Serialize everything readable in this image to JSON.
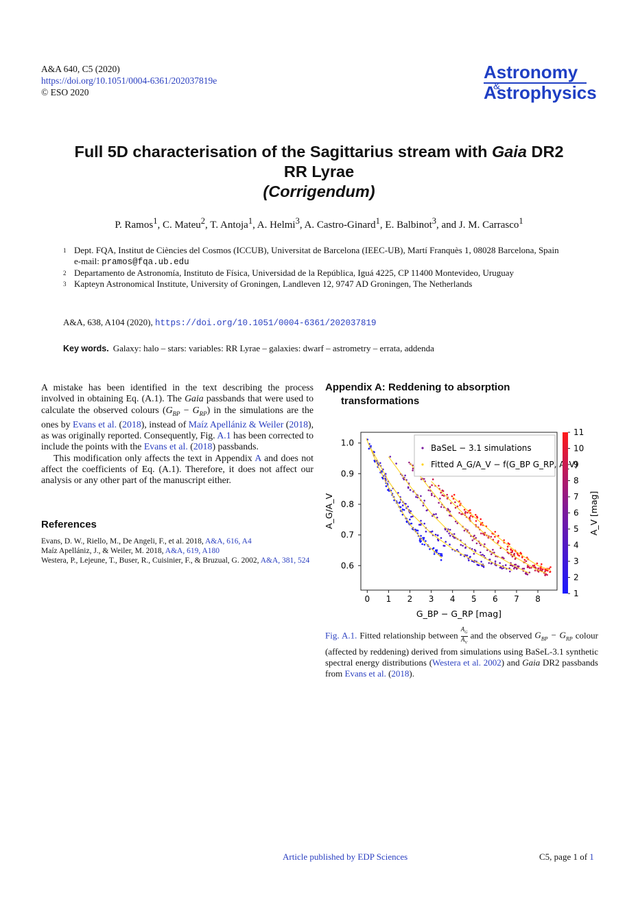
{
  "header": {
    "journal_ref": "A&A 640, C5 (2020)",
    "doi": "https://doi.org/10.1051/0004-6361/202037819e",
    "copyright": "© ESO 2020"
  },
  "logo": {
    "line1": "Astronomy",
    "amp": "&",
    "line2": "Astrophysics"
  },
  "title": {
    "line1_a": "Full 5D characterisation of the Sagittarius stream with ",
    "line1_italic": "Gaia",
    "line1_b": " DR2",
    "line2": "RR Lyrae",
    "line3": "(Corrigendum)"
  },
  "authors": [
    {
      "name": "P. Ramos",
      "aff": "1"
    },
    {
      "name": "C. Mateu",
      "aff": "2"
    },
    {
      "name": "T. Antoja",
      "aff": "1"
    },
    {
      "name": "A. Helmi",
      "aff": "3"
    },
    {
      "name": "A. Castro-Ginard",
      "aff": "1"
    },
    {
      "name": "E. Balbinot",
      "aff": "3"
    },
    {
      "name": "J. M. Carrasco",
      "aff": "1"
    }
  ],
  "affiliations": {
    "a1_num": "1",
    "a1_text": "Dept. FQA, Institut de Ciències del Cosmos (ICCUB), Universitat de Barcelona (IEEC-UB), Martí Franquès 1, 08028 Barcelona, Spain",
    "a1_email_label": "e-mail: ",
    "a1_email": "pramos@fqa.ub.edu",
    "a2_num": "2",
    "a2_text": "Departamento de Astronomía, Instituto de Física, Universidad de la República, Iguá 4225, CP 11400 Montevideo, Uruguay",
    "a3_num": "3",
    "a3_text": "Kapteyn Astronomical Institute, University of Groningen, Landleven 12, 9747 AD Groningen, The Netherlands"
  },
  "original": {
    "ref": "A&A, 638, A104 (2020), ",
    "doi": "https://doi.org/10.1051/0004-6361/202037819"
  },
  "keywords": {
    "label": "Key words.",
    "text": "Galaxy: halo – stars: variables: RR Lyrae – galaxies: dwarf – astrometry – errata, addenda"
  },
  "body": {
    "p1": [
      "A mistake has been identified in the text describing the process involved in obtaining Eq. (A.1). The ",
      "Gaia",
      " passbands that were used to calculate the observed colours (",
      "G",
      "BP",
      " − ",
      "G",
      "RP",
      ") in the simulations are the ones by ",
      "Evans et al.",
      " (",
      "2018",
      "), instead of ",
      "Maíz Apellániz & Weiler",
      " (",
      "2018",
      "), as was originally reported. Consequently, Fig. ",
      "A.1",
      " has been corrected to include the points with the ",
      "Evans et al.",
      " (",
      "2018",
      ") passbands."
    ],
    "p2": [
      "This modification only affects the text in Appendix ",
      "A",
      " and does not affect the coefficients of Eq. (A.1). Therefore, it does not affect our analysis or any other part of the manuscript either."
    ]
  },
  "references": {
    "heading": "References",
    "items": [
      {
        "text": "Evans, D. W., Riello, M., De Angeli, F., et al. 2018, ",
        "link": "A&A, 616, A4"
      },
      {
        "text": "Maíz Apellániz, J., & Weiler, M. 2018, ",
        "link": "A&A, 619, A180"
      },
      {
        "text": "Westera, P., Lejeune, T., Buser, R., Cuisinier, F., & Bruzual, G. 2002, ",
        "link": "A&A, 381, 524"
      }
    ]
  },
  "appendix": {
    "heading_line1": "Appendix A: Reddening to absorption",
    "heading_line2": "transformations"
  },
  "figure": {
    "caption_label": "Fig. A.1.",
    "caption_parts": [
      " Fitted relationship between ",
      " and the observed ",
      " colour (affected by reddening) derived from simulations using BaSeL-3.1 synthetic spectral energy distributions (",
      "Westera et al. 2002",
      ") and ",
      "Gaia",
      " DR2 passbands from ",
      "Evans et al.",
      " (",
      "2018",
      ")."
    ]
  },
  "chart_data": {
    "type": "scatter",
    "xlabel": "G_BP − G_RP [mag]",
    "ylabel": "A_G/A_V",
    "colorbar_label": "A_V [mag]",
    "xlim": [
      -0.3,
      8.9
    ],
    "ylim": [
      0.52,
      1.035
    ],
    "xticks": [
      "0",
      "1",
      "2",
      "3",
      "4",
      "5",
      "6",
      "7",
      "8"
    ],
    "yticks": [
      "0.6",
      "0.7",
      "0.8",
      "0.9",
      "1.0"
    ],
    "cbar_ticks": [
      "1",
      "2",
      "3",
      "4",
      "5",
      "6",
      "7",
      "8",
      "9",
      "10",
      "11"
    ],
    "cbar_range": [
      1,
      11
    ],
    "legend": {
      "position": "top-right",
      "entries": [
        "BaSeL − 3.1 simulations",
        "Fitted A_G/A_V − f(G_BP   G_RP, A_V)"
      ]
    },
    "colors": {
      "low": "#1a1aff",
      "mid": "#7a1a9e",
      "high": "#ff1a1a",
      "fit": "#ffd21a"
    },
    "series": [
      {
        "av": 1,
        "x": [
          -0.05,
          0.5,
          1.0,
          1.5,
          2.0,
          2.5,
          3.0,
          3.5
        ],
        "y": [
          1.015,
          0.925,
          0.855,
          0.79,
          0.735,
          0.69,
          0.655,
          0.625
        ]
      },
      {
        "av": 3,
        "x": [
          0.2,
          1.0,
          2.0,
          3.0,
          4.0,
          5.0,
          5.5
        ],
        "y": [
          0.98,
          0.875,
          0.775,
          0.705,
          0.655,
          0.615,
          0.6
        ]
      },
      {
        "av": 5,
        "x": [
          1.0,
          2.0,
          3.0,
          4.0,
          5.0,
          6.0,
          6.8
        ],
        "y": [
          0.955,
          0.86,
          0.77,
          0.7,
          0.645,
          0.605,
          0.585
        ]
      },
      {
        "av": 7,
        "x": [
          2.0,
          3.0,
          4.0,
          5.0,
          6.0,
          7.0,
          7.6
        ],
        "y": [
          0.935,
          0.845,
          0.76,
          0.69,
          0.635,
          0.595,
          0.575
        ]
      },
      {
        "av": 9,
        "x": [
          3.0,
          4.0,
          5.0,
          6.0,
          7.0,
          8.0,
          8.4
        ],
        "y": [
          0.875,
          0.805,
          0.735,
          0.675,
          0.625,
          0.585,
          0.575
        ]
      },
      {
        "av": 11,
        "x": [
          4.0,
          5.0,
          6.0,
          7.0,
          8.0,
          8.6
        ],
        "y": [
          0.825,
          0.76,
          0.7,
          0.645,
          0.6,
          0.585
        ]
      }
    ]
  },
  "footer": {
    "published": "Article published by EDP Sciences",
    "page_prefix": "C5, page 1 of ",
    "page_total": "1"
  }
}
